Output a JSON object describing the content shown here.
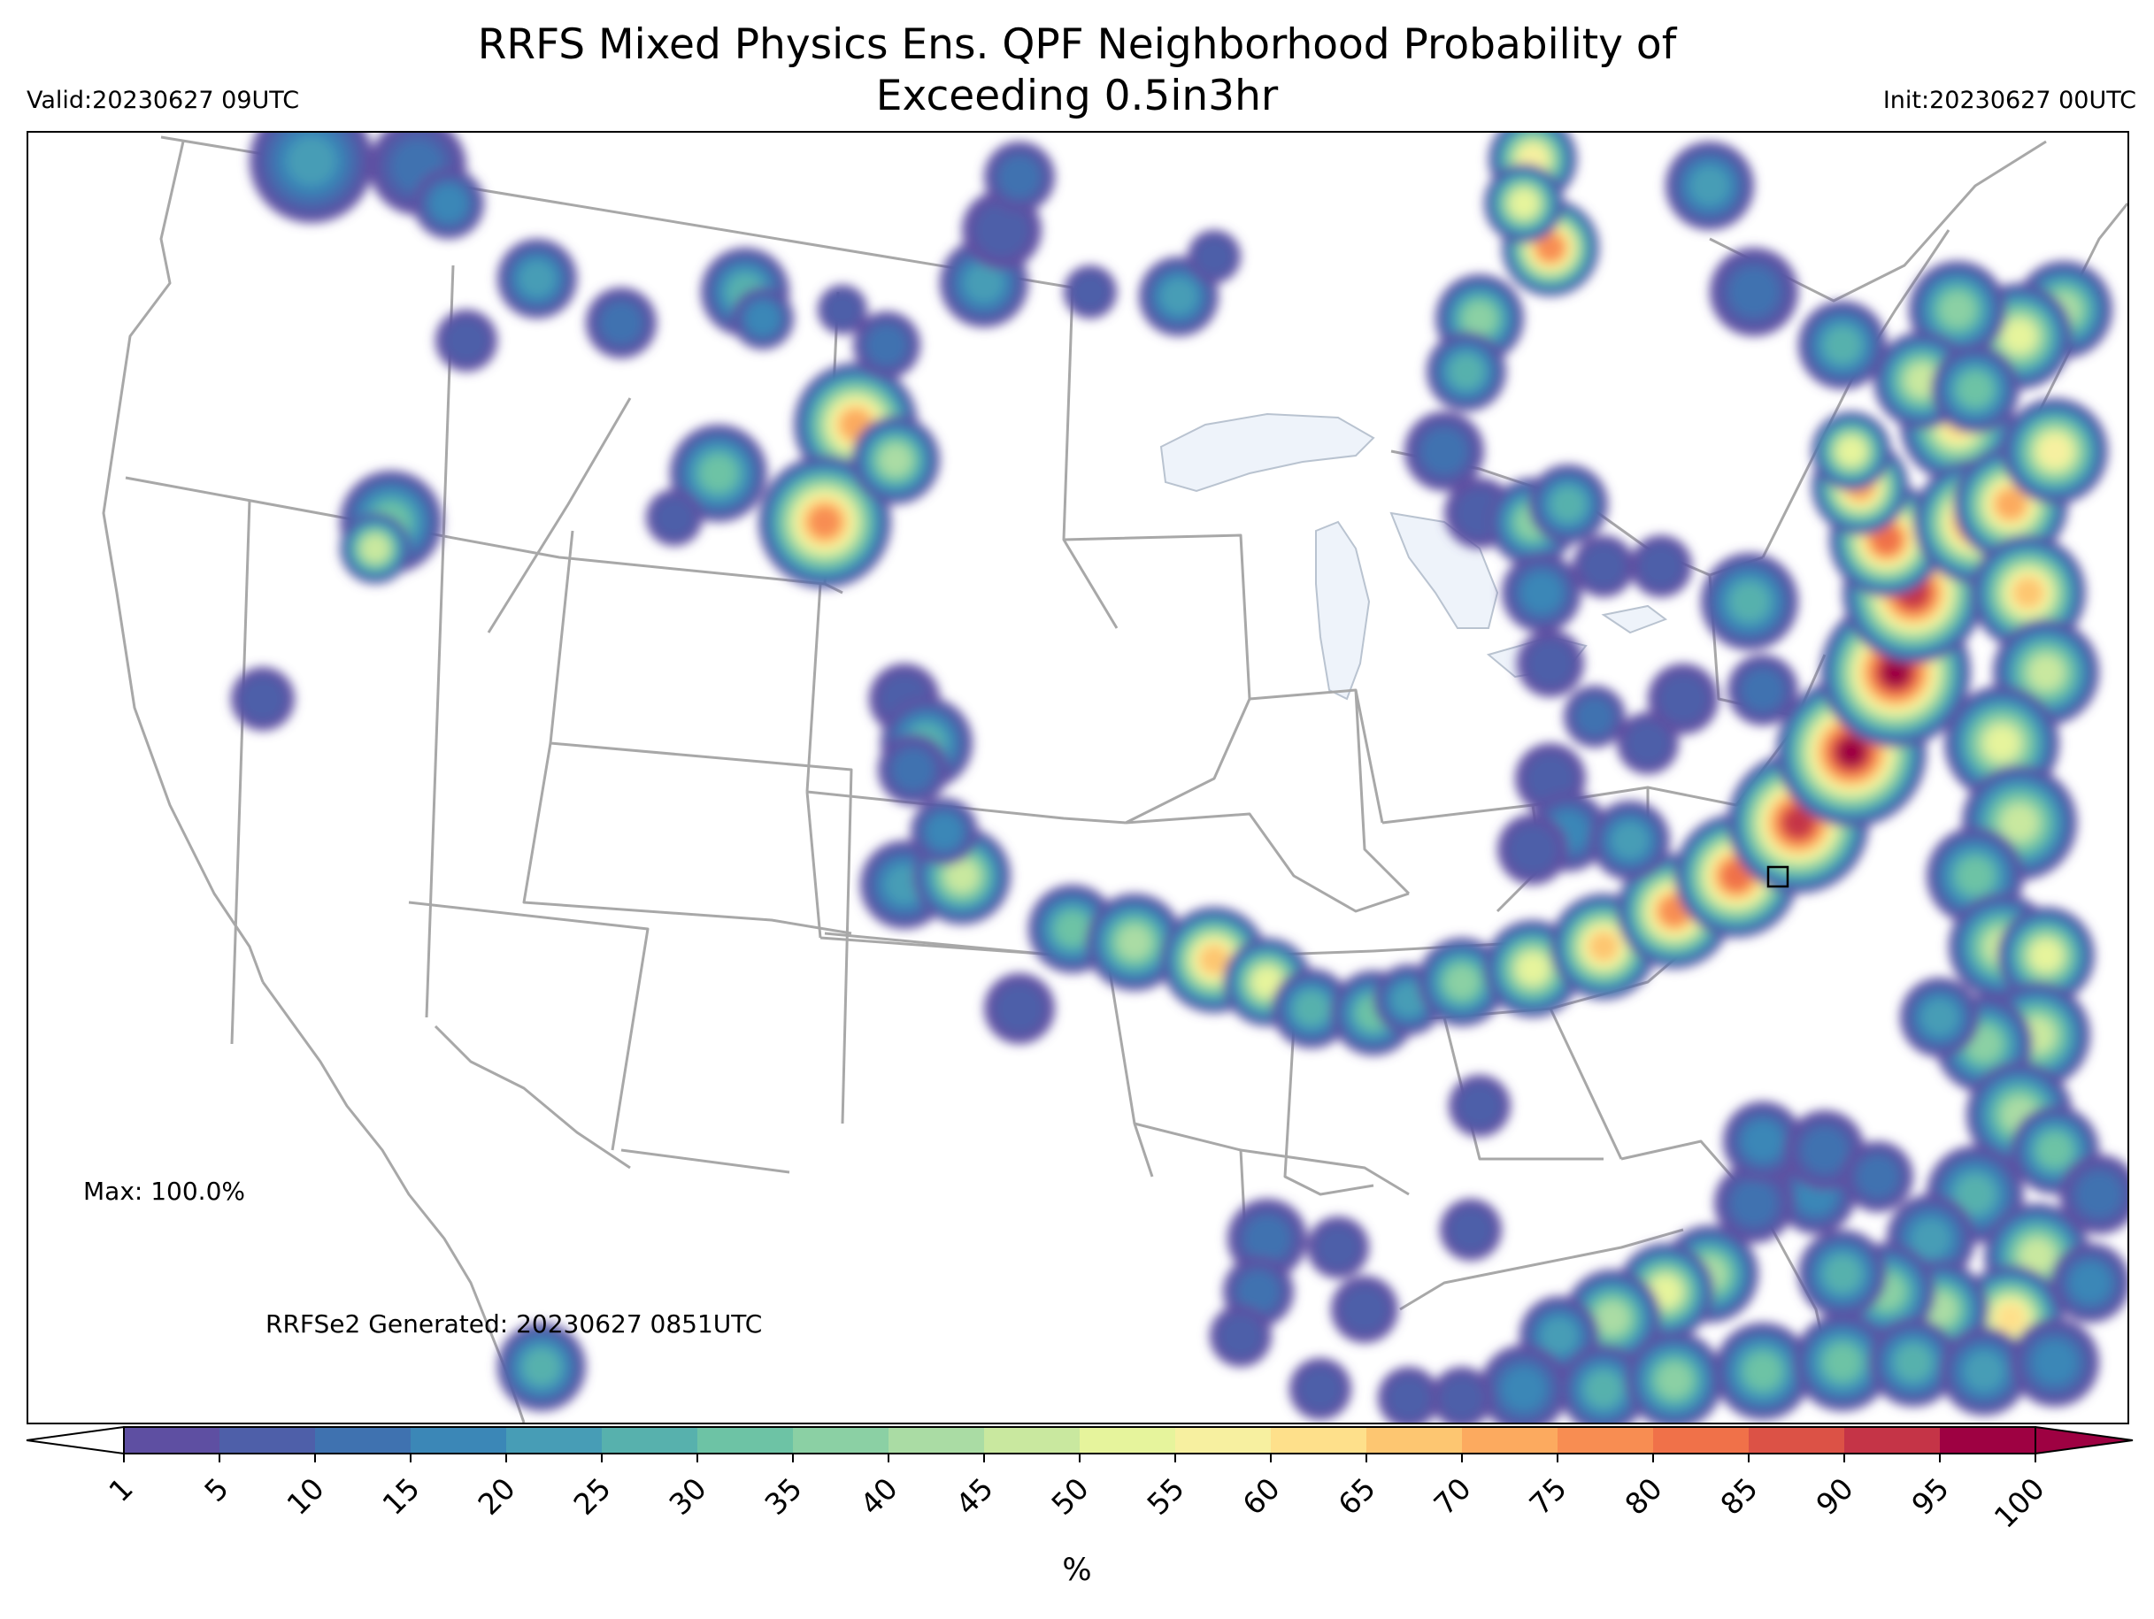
{
  "title": "RRFS Mixed Physics Ens. QPF Neighborhood Probability of\nExceeding 0.5in3hr",
  "valid_label": "Valid:20230627 09UTC",
  "init_label": "Init:20230627 00UTC",
  "max_label": "Max: 100.0%",
  "generated_label": "RRFSe2 Generated: 20230627 0851UTC",
  "colorbar": {
    "unit": "%",
    "levels": [
      1,
      5,
      10,
      15,
      20,
      25,
      30,
      35,
      40,
      45,
      50,
      55,
      60,
      65,
      70,
      75,
      80,
      85,
      90,
      95,
      100
    ],
    "tick_labels": [
      "1",
      "5",
      "10",
      "15",
      "20",
      "25",
      "30",
      "35",
      "40",
      "45",
      "50",
      "55",
      "60",
      "65",
      "70",
      "75",
      "80",
      "85",
      "90",
      "95",
      "100"
    ],
    "colors": [
      "#5e4fa2",
      "#4e5fa9",
      "#3f72b0",
      "#3b87b7",
      "#479db6",
      "#57b1ad",
      "#6dc3a5",
      "#8bd0a4",
      "#aadca4",
      "#c9e89f",
      "#e6f49c",
      "#f7f0a0",
      "#fee08b",
      "#fdc671",
      "#fcaa5f",
      "#f88d52",
      "#f07149",
      "#dc5246",
      "#c53447",
      "#9e0142"
    ],
    "extend": "both"
  },
  "map": {
    "projection": "Lambert conformal (CONUS)",
    "background": "#ffffff",
    "boundary_color": "#a8a8a8",
    "lakes_color": "#eef3fa",
    "marker": "small square in eastern North Carolina"
  }
}
